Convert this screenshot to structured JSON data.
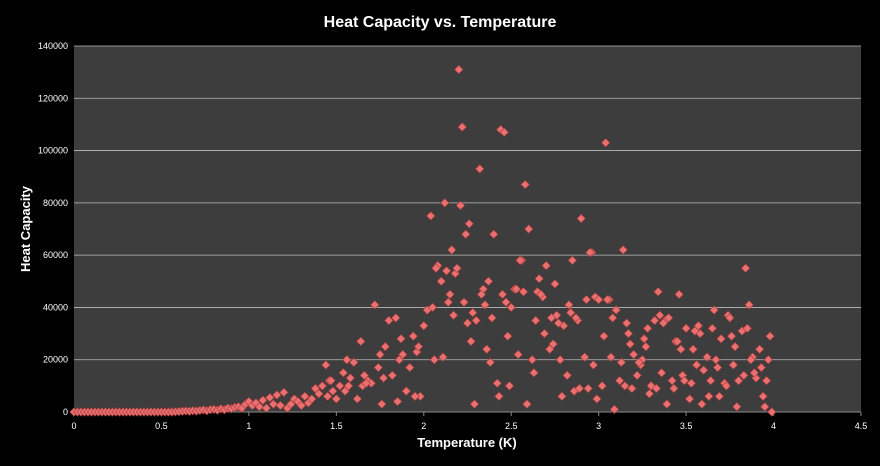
{
  "chart_data": {
    "type": "scatter",
    "title": "Heat Capacity vs. Temperature",
    "xlabel": "Temperature (K)",
    "ylabel": "Heat Capacity",
    "xlim": [
      0,
      4.5
    ],
    "ylim": [
      0,
      140000
    ],
    "x_ticks": [
      "0",
      "0.5",
      "1",
      "1.5",
      "2",
      "2.5",
      "3",
      "3.5",
      "4",
      "4.5"
    ],
    "y_ticks": [
      "0",
      "20000",
      "40000",
      "60000",
      "80000",
      "100000",
      "120000",
      "140000"
    ],
    "grid": "horizontal",
    "legend": "none",
    "marker": "diamond",
    "colors": {
      "background": "#000000",
      "plot_area": "#3d3d3d",
      "gridline": "#bdbdbd",
      "marker": "#e87070",
      "marker_stroke": "#a83a3a",
      "text": "#ffffff"
    },
    "series": [
      {
        "x": [
          0.0,
          0.02,
          0.04,
          0.06,
          0.08,
          0.1,
          0.12,
          0.14,
          0.16,
          0.18,
          0.2,
          0.22,
          0.24,
          0.26,
          0.28,
          0.3,
          0.32,
          0.34,
          0.36,
          0.38,
          0.4,
          0.42,
          0.44,
          0.46,
          0.48,
          0.5,
          0.52,
          0.54,
          0.56,
          0.58,
          0.6,
          0.62,
          0.64,
          0.66,
          0.68,
          0.7,
          0.72,
          0.74,
          0.76,
          0.78,
          0.8,
          0.82,
          0.84,
          0.86,
          0.88,
          0.9,
          0.92,
          0.94,
          0.96,
          0.98,
          1.0,
          1.02,
          1.04,
          1.06,
          1.08,
          1.1,
          1.12,
          1.14,
          1.16,
          1.18,
          1.2,
          1.22,
          1.24,
          1.26,
          1.28,
          1.3,
          1.32,
          1.34,
          1.36,
          1.38,
          1.4,
          1.42,
          1.44,
          1.46,
          1.48,
          1.5,
          1.52,
          1.54,
          1.56,
          1.58,
          1.6,
          1.62,
          1.64,
          1.66,
          1.68,
          1.7,
          1.72,
          1.74,
          1.76,
          1.78,
          1.8,
          1.82,
          1.84,
          1.86,
          1.88,
          1.9,
          1.92,
          1.94,
          1.96,
          1.98,
          2.0,
          2.02,
          2.04,
          2.06,
          2.08,
          2.1,
          2.12,
          2.14,
          2.16,
          2.18,
          2.2,
          2.21,
          2.22,
          2.24,
          2.26,
          2.28,
          2.3,
          2.32,
          2.34,
          2.36,
          2.38,
          2.4,
          2.42,
          2.44,
          2.46,
          2.48,
          2.5,
          2.52,
          2.54,
          2.56,
          2.58,
          2.6,
          2.62,
          2.64,
          2.66,
          2.68,
          2.7,
          2.72,
          2.74,
          2.76,
          2.78,
          2.8,
          2.82,
          2.84,
          2.86,
          2.88,
          2.9,
          2.92,
          2.94,
          2.96,
          2.98,
          3.0,
          3.02,
          3.04,
          3.06,
          3.08,
          3.1,
          3.12,
          3.14,
          3.16,
          3.18,
          3.2,
          3.22,
          3.24,
          3.26,
          3.28,
          3.3,
          3.32,
          3.34,
          3.36,
          3.38,
          3.4,
          3.42,
          3.44,
          3.46,
          3.48,
          3.5,
          3.52,
          3.54,
          3.56,
          3.58,
          3.6,
          3.62,
          3.64,
          3.66,
          3.68,
          3.7,
          3.72,
          3.74,
          3.76,
          3.78,
          3.8,
          3.82,
          3.84,
          3.86,
          3.88,
          3.9,
          3.92,
          3.94,
          3.96,
          3.98,
          1.45,
          1.55,
          1.65,
          1.75,
          1.85,
          1.95,
          2.05,
          2.15,
          2.25,
          2.35,
          2.45,
          2.55,
          2.65,
          2.75,
          2.85,
          2.95,
          3.05,
          3.15,
          3.25,
          3.35,
          3.45,
          3.55,
          3.65,
          3.75,
          3.85,
          3.95,
          1.47,
          1.57,
          1.67,
          1.77,
          1.87,
          1.97,
          2.07,
          2.17,
          2.27,
          2.37,
          2.47,
          2.57,
          2.67,
          2.77,
          2.87,
          2.97,
          3.07,
          3.17,
          3.27,
          3.37,
          3.47,
          3.57,
          3.67,
          3.77,
          3.87,
          3.97,
          2.13,
          2.23,
          2.33,
          2.43,
          2.53,
          2.63,
          2.73,
          2.83,
          2.93,
          3.03,
          3.13,
          3.23,
          3.33,
          3.43,
          3.53,
          3.63,
          3.73,
          3.83,
          3.93,
          2.11,
          2.19,
          2.29,
          2.39,
          2.49,
          2.59,
          2.69,
          2.79,
          2.89,
          2.99,
          3.09,
          3.19,
          3.29,
          3.39,
          3.49,
          3.59,
          3.69,
          3.79,
          3.89,
          3.99
        ],
        "y": [
          0,
          0,
          0,
          0,
          0,
          0,
          0,
          0,
          0,
          0,
          0,
          0,
          0,
          0,
          0,
          0,
          0,
          0,
          0,
          0,
          0,
          0,
          0,
          0,
          0,
          0,
          0,
          0,
          0,
          100,
          200,
          300,
          400,
          300,
          500,
          400,
          600,
          800,
          500,
          900,
          1000,
          700,
          1200,
          900,
          1500,
          1300,
          1800,
          2000,
          1500,
          3000,
          4000,
          2500,
          3500,
          2000,
          4500,
          1500,
          5500,
          3000,
          6500,
          2500,
          7500,
          1500,
          3000,
          5000,
          4000,
          2500,
          6000,
          3500,
          5000,
          9000,
          7000,
          10000,
          18000,
          12000,
          8000,
          5000,
          10000,
          15000,
          20000,
          13000,
          19000,
          5000,
          27000,
          14000,
          12000,
          11000,
          41000,
          17000,
          3000,
          25000,
          35000,
          14000,
          36000,
          20000,
          22000,
          8000,
          17000,
          29000,
          23000,
          6000,
          33000,
          39000,
          75000,
          20000,
          56000,
          50000,
          80000,
          42000,
          62000,
          53000,
          131000,
          79000,
          109000,
          68000,
          72000,
          38000,
          35000,
          93000,
          47000,
          24000,
          19000,
          68000,
          11000,
          108000,
          107000,
          29000,
          40000,
          47000,
          22000,
          58000,
          87000,
          70000,
          20000,
          35000,
          51000,
          44000,
          56000,
          24000,
          26000,
          37000,
          20000,
          33000,
          14000,
          38000,
          8000,
          35000,
          74000,
          21000,
          9000,
          61000,
          44000,
          43000,
          10000,
          103000,
          43000,
          36000,
          39000,
          12000,
          62000,
          34000,
          26000,
          22000,
          14000,
          18000,
          28000,
          32000,
          10000,
          35000,
          46000,
          15000,
          35000,
          36000,
          12000,
          27000,
          45000,
          14000,
          32000,
          5000,
          24000,
          18000,
          30000,
          16000,
          21000,
          12000,
          39000,
          17000,
          28000,
          11000,
          37000,
          29000,
          25000,
          12000,
          31000,
          55000,
          41000,
          21000,
          13000,
          24000,
          6000,
          12000,
          29000,
          6000,
          8000,
          10000,
          22000,
          4000,
          6000,
          40000,
          45000,
          34000,
          41000,
          45000,
          58000,
          46000,
          49000,
          58000,
          61000,
          43000,
          10000,
          20000,
          37000,
          27000,
          31000,
          32000,
          36000,
          32000,
          2000,
          12000,
          10000,
          11000,
          13000,
          28000,
          25000,
          55000,
          37000,
          27000,
          50000,
          42000,
          46000,
          45000,
          34000,
          36000,
          18000,
          21000,
          30000,
          25000,
          34000,
          24000,
          33000,
          20000,
          18000,
          20000,
          20000,
          54000,
          42000,
          45000,
          6000,
          47000,
          15000,
          36000,
          41000,
          43000,
          29000,
          19000,
          19000,
          9000,
          9000,
          11000,
          6000,
          10000,
          14000,
          17000,
          21000,
          55000,
          3000,
          36000,
          10000,
          3000,
          30000,
          6000,
          9000,
          5000,
          1000,
          9000,
          7000,
          3000,
          12000,
          3000,
          6000,
          2000,
          15000,
          0
        ]
      }
    ]
  }
}
